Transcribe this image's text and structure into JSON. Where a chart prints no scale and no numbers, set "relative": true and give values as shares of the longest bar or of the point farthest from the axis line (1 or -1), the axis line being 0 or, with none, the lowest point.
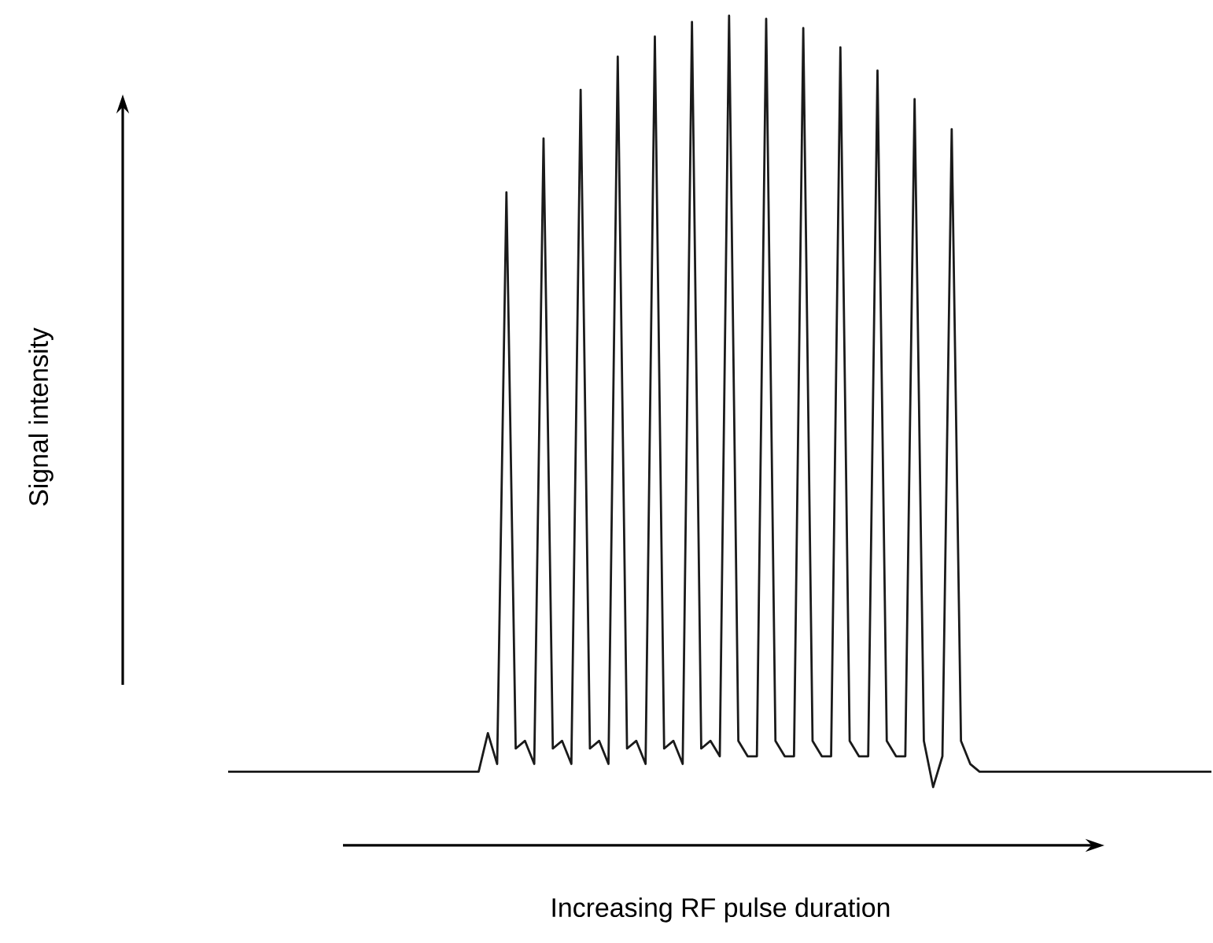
{
  "chart_data": {
    "type": "line",
    "relative": true,
    "annotations": [
      "Signal intensity",
      "Increasing RF pulse duration"
    ],
    "categories": [
      null,
      null,
      null,
      null,
      null,
      null,
      null,
      null,
      null,
      null,
      null,
      null,
      null,
      null,
      null,
      null,
      null,
      null,
      null,
      null,
      null,
      null,
      null,
      null,
      null,
      null,
      null,
      null,
      null,
      null,
      null,
      null,
      null,
      null,
      null,
      null,
      null,
      null,
      null,
      null,
      null,
      null,
      null,
      null,
      null,
      null,
      null,
      null,
      null,
      null,
      null,
      null,
      null,
      null,
      null,
      null,
      null,
      null,
      null,
      null,
      null,
      null,
      null,
      null,
      null,
      null,
      null,
      null,
      null,
      null,
      null,
      null,
      null,
      null,
      null,
      null,
      null,
      null,
      null,
      null,
      null,
      null,
      null,
      null,
      null,
      null,
      null,
      null,
      null,
      null,
      null,
      null,
      null,
      null,
      null,
      null,
      null,
      null,
      null,
      null,
      null,
      null,
      null,
      null,
      null,
      null,
      null
    ],
    "series": [
      {
        "color": "#1a1a1a",
        "values": [
          0.02,
          0.02,
          0.02,
          0.02,
          0.02,
          0.02,
          0.02,
          0.02,
          0.02,
          0.02,
          0.02,
          0.02,
          0.02,
          0.02,
          0.02,
          0.02,
          0.02,
          0.02,
          0.02,
          0.02,
          0.02,
          0.02,
          0.02,
          0.02,
          0.02,
          0.02,
          0.02,
          0.02,
          0.07,
          0.03,
          0.771,
          0.05,
          0.06,
          0.03,
          0.841,
          0.05,
          0.06,
          0.03,
          0.904,
          0.05,
          0.06,
          0.03,
          0.947,
          0.05,
          0.06,
          0.03,
          0.973,
          0.05,
          0.06,
          0.03,
          0.992,
          0.05,
          0.06,
          0.04,
          1.0,
          0.06,
          0.04,
          0.04,
          0.996,
          0.06,
          0.04,
          0.04,
          0.984,
          0.06,
          0.04,
          0.04,
          0.959,
          0.06,
          0.04,
          0.04,
          0.929,
          0.06,
          0.04,
          0.04,
          0.892,
          0.06,
          0,
          0.04,
          0.853,
          0.06,
          0.03,
          0.02,
          0.02,
          0.02,
          0.02,
          0.02,
          0.02,
          0.02,
          0.02,
          0.02,
          0.02,
          0.02,
          0.02,
          0.02,
          0.02,
          0.02,
          0.02,
          0.02,
          0.02,
          0.02,
          0.02,
          0.02,
          0.02,
          0.02,
          0.02,
          0.02,
          0.02
        ]
      }
    ],
    "marker": "none",
    "line_style": "solid"
  }
}
